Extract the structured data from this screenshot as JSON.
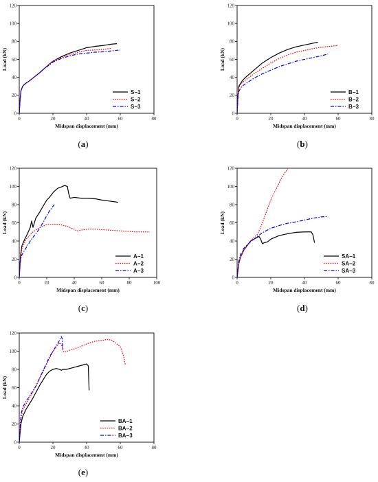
{
  "chart_data": [
    {
      "id": "a",
      "type": "line",
      "caption_letter": "a",
      "xlabel": "Midspan displacement (mm)",
      "ylabel": "Load (kN)",
      "xlim": [
        0,
        80
      ],
      "ylim": [
        0,
        120
      ],
      "xticks": [
        0,
        20,
        40,
        60,
        80
      ],
      "yticks": [
        0,
        20,
        40,
        60,
        80,
        100,
        120
      ],
      "legend_position": "bottom-right",
      "grid": false,
      "series": [
        {
          "name": "S−1",
          "color": "#000000",
          "style": "solid",
          "x": [
            0,
            0.5,
            1,
            2,
            3,
            4,
            6,
            8,
            10,
            12,
            15,
            18,
            20,
            25,
            30,
            35,
            40,
            45,
            50,
            55,
            58
          ],
          "y": [
            0,
            15,
            25,
            30,
            32,
            33.5,
            36,
            39,
            42,
            45,
            50,
            55,
            58,
            63,
            67,
            70,
            73,
            74.5,
            75.5,
            77,
            77.5
          ]
        },
        {
          "name": "S−2",
          "color": "#ff0000",
          "style": "dotted",
          "x": [
            0,
            0.5,
            1,
            2,
            3,
            4,
            6,
            8,
            10,
            12,
            15,
            18,
            20,
            25,
            30,
            35,
            40,
            45,
            50,
            55
          ],
          "y": [
            0,
            15,
            25,
            30,
            32,
            33.5,
            36,
            39,
            42,
            45,
            50,
            55,
            58,
            62,
            65.5,
            68,
            70,
            70.5,
            71,
            72.5
          ]
        },
        {
          "name": "S−3",
          "color": "#0000ff",
          "style": "dashdot",
          "x": [
            0,
            0.5,
            1,
            2,
            3,
            4,
            6,
            8,
            10,
            12,
            15,
            18,
            20,
            25,
            30,
            35,
            40,
            45,
            50,
            55,
            60
          ],
          "y": [
            0,
            15,
            25,
            30,
            32,
            33.5,
            36,
            39,
            42,
            45,
            50,
            54,
            57,
            61,
            64,
            66,
            67,
            68,
            68.5,
            69.5,
            70.5
          ]
        }
      ]
    },
    {
      "id": "b",
      "type": "line",
      "caption_letter": "b",
      "xlabel": "Midspan displacement (mm)",
      "ylabel": "Load (kN)",
      "xlim": [
        0,
        80
      ],
      "ylim": [
        0,
        120
      ],
      "xticks": [
        0,
        20,
        40,
        60,
        80
      ],
      "yticks": [
        0,
        20,
        40,
        60,
        80,
        100,
        120
      ],
      "legend_position": "bottom-right",
      "grid": false,
      "series": [
        {
          "name": "B−1",
          "color": "#000000",
          "style": "solid",
          "x": [
            0,
            0.5,
            1,
            2,
            3,
            5,
            10,
            15,
            20,
            25,
            30,
            35,
            40,
            45,
            48
          ],
          "y": [
            0,
            20,
            30,
            33,
            36,
            40,
            48,
            56,
            62,
            67,
            71,
            74,
            76,
            78,
            79
          ]
        },
        {
          "name": "B−2",
          "color": "#ff0000",
          "style": "dotted",
          "x": [
            0,
            0.5,
            1,
            2,
            3,
            5,
            10,
            15,
            20,
            25,
            30,
            35,
            40,
            45,
            50,
            55,
            60
          ],
          "y": [
            0,
            20,
            28,
            32,
            34,
            37,
            44,
            50,
            56,
            61,
            65,
            68,
            70,
            72,
            73.5,
            74.5,
            75.5
          ]
        },
        {
          "name": "B−3",
          "color": "#0000ff",
          "style": "dashdot",
          "x": [
            0,
            0.5,
            1,
            2,
            3,
            5,
            10,
            15,
            20,
            25,
            30,
            35,
            40,
            45,
            50,
            54
          ],
          "y": [
            0,
            18,
            24,
            28,
            30,
            33,
            39,
            44,
            48,
            52,
            55,
            58,
            60,
            62,
            64,
            66
          ]
        }
      ]
    },
    {
      "id": "c",
      "type": "line",
      "caption_letter": "c",
      "xlabel": "Midspan displacement (mm)",
      "ylabel": "Load (kN)",
      "xlim": [
        0,
        100
      ],
      "ylim": [
        0,
        120
      ],
      "xticks": [
        0,
        20,
        40,
        60,
        80,
        100
      ],
      "yticks": [
        0,
        20,
        40,
        60,
        80,
        100,
        120
      ],
      "legend_position": "bottom-right",
      "grid": false,
      "series": [
        {
          "name": "A−1",
          "color": "#000000",
          "style": "solid",
          "x": [
            0,
            1,
            2,
            4,
            6,
            8,
            9,
            10,
            12,
            15,
            18,
            20,
            22,
            25,
            28,
            30,
            33,
            35,
            36,
            37,
            40,
            45,
            50,
            55,
            60,
            65,
            70,
            72
          ],
          "y": [
            0,
            25,
            35,
            42,
            48,
            55,
            62,
            55,
            65,
            72,
            80,
            85,
            88,
            94,
            98,
            99,
            101,
            100,
            92,
            87,
            88,
            87,
            87,
            86.5,
            85,
            84,
            83,
            82.5
          ]
        },
        {
          "name": "A−2",
          "color": "#ff0000",
          "style": "dotted",
          "x": [
            0,
            1,
            2,
            5,
            10,
            15,
            20,
            25,
            30,
            35,
            40,
            42,
            45,
            50,
            55,
            60,
            65,
            70,
            75,
            80,
            85,
            90,
            95
          ],
          "y": [
            0,
            20,
            32,
            42,
            50,
            55,
            58,
            58.5,
            58,
            56,
            53,
            51,
            52,
            53,
            53,
            52.5,
            52,
            51.5,
            51,
            50.5,
            50,
            50,
            50
          ]
        },
        {
          "name": "A−3",
          "color": "#0000ff",
          "style": "dashdot",
          "x": [
            0,
            0.5,
            1,
            2,
            4,
            6,
            8,
            10,
            12,
            14,
            16,
            18,
            20,
            22,
            24,
            26
          ],
          "y": [
            0,
            15,
            20,
            25,
            30,
            35,
            40,
            44,
            48,
            52,
            57,
            62,
            68,
            73,
            77,
            81
          ]
        }
      ]
    },
    {
      "id": "d",
      "type": "line",
      "caption_letter": "d",
      "xlabel": "Midspan displacement (mm)",
      "ylabel": "Load (kN)",
      "xlim": [
        0,
        80
      ],
      "ylim": [
        0,
        120
      ],
      "xticks": [
        0,
        20,
        40,
        60,
        80
      ],
      "yticks": [
        0,
        20,
        40,
        60,
        80,
        100,
        120
      ],
      "legend_position": "bottom-right",
      "grid": false,
      "series": [
        {
          "name": "SA−1",
          "color": "#000000",
          "style": "solid",
          "x": [
            0,
            1,
            2,
            4,
            6,
            8,
            10,
            12,
            13,
            14,
            15,
            16,
            18,
            20,
            25,
            30,
            35,
            40,
            44,
            45,
            46
          ],
          "y": [
            0,
            15,
            22,
            30,
            35,
            40,
            42,
            44,
            45,
            42,
            37,
            38,
            39,
            42,
            46,
            48,
            49.5,
            50,
            50,
            47,
            38
          ]
        },
        {
          "name": "SA−2",
          "color": "#ff0000",
          "style": "dotted",
          "x": [
            0,
            1,
            2,
            4,
            6,
            8,
            10,
            12,
            14,
            16,
            18,
            20,
            22,
            24,
            26,
            28,
            30
          ],
          "y": [
            0,
            15,
            22,
            30,
            35,
            40,
            44,
            47,
            55,
            65,
            75,
            85,
            93,
            100,
            108,
            114,
            119
          ]
        },
        {
          "name": "SA−3",
          "color": "#0000ff",
          "style": "dashdot",
          "x": [
            0,
            1,
            2,
            4,
            6,
            8,
            10,
            12,
            15,
            20,
            25,
            30,
            35,
            40,
            45,
            50,
            54
          ],
          "y": [
            0,
            18,
            25,
            32,
            36,
            39,
            42,
            45,
            49,
            54,
            57,
            59.5,
            61,
            63,
            65,
            66.5,
            67
          ]
        }
      ]
    },
    {
      "id": "e",
      "type": "line",
      "caption_letter": "e",
      "xlabel": "Midspan displacement (mm)",
      "ylabel": "Load (kN)",
      "xlim": [
        0,
        80
      ],
      "ylim": [
        0,
        120
      ],
      "xticks": [
        0,
        20,
        40,
        60,
        80
      ],
      "yticks": [
        0,
        20,
        40,
        60,
        80,
        100,
        120
      ],
      "legend_position": "bottom-left",
      "grid": false,
      "series": [
        {
          "name": "BA−1",
          "color": "#000000",
          "style": "solid",
          "x": [
            0,
            1,
            2,
            4,
            6,
            8,
            10,
            12,
            14,
            16,
            18,
            20,
            22,
            24,
            25,
            26,
            28,
            30,
            34,
            38,
            40,
            41,
            41.5
          ],
          "y": [
            0,
            20,
            28,
            36,
            42,
            48,
            55,
            62,
            68,
            74,
            78,
            80,
            81,
            80,
            79,
            80,
            80,
            81,
            83,
            85,
            86,
            84,
            57
          ]
        },
        {
          "name": "BA−2",
          "color": "#ff0000",
          "style": "dotted",
          "x": [
            0,
            1,
            2,
            4,
            6,
            8,
            10,
            12,
            14,
            16,
            18,
            20,
            22,
            24,
            25,
            26,
            27,
            30,
            35,
            40,
            45,
            50,
            52,
            55,
            58,
            60,
            62,
            63
          ],
          "y": [
            0,
            25,
            35,
            42,
            48,
            55,
            62,
            70,
            77,
            85,
            92,
            100,
            105,
            109,
            108,
            100,
            99,
            101,
            104,
            108,
            111,
            112,
            113,
            112,
            108,
            105,
            95,
            85
          ]
        },
        {
          "name": "BA−3",
          "color": "#0000ff",
          "style": "dashdot",
          "x": [
            0,
            1,
            2,
            4,
            6,
            8,
            10,
            12,
            14,
            16,
            18,
            20,
            22,
            24,
            25,
            25.5,
            26
          ],
          "y": [
            0,
            30,
            38,
            45,
            50,
            56,
            62,
            70,
            78,
            86,
            94,
            100,
            106,
            112,
            116,
            114,
            101
          ]
        }
      ]
    }
  ]
}
